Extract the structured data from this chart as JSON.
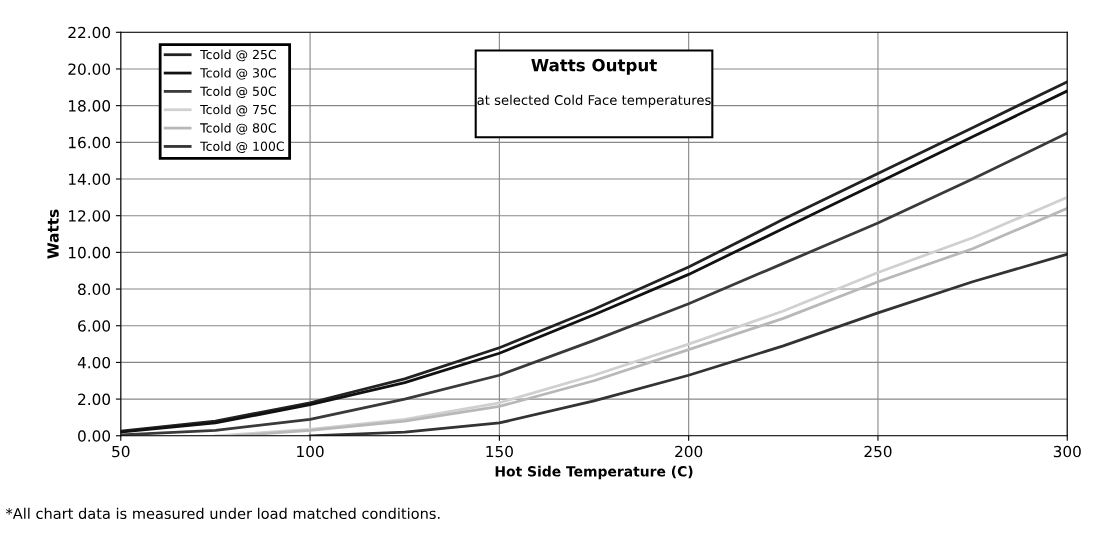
{
  "chart_data": {
    "type": "line",
    "title": "Watts Output",
    "subtitle": "at selected Cold Face temperatures",
    "xlabel": "Hot Side Temperature (C)",
    "ylabel": "Watts",
    "annotations": [
      "*All chart data is measured under load matched conditions."
    ],
    "series": [
      {
        "name": "Tcold @ 25C",
        "color": "#222222",
        "x": [
          50,
          75,
          100,
          125,
          150,
          175,
          200,
          225,
          250,
          275,
          300
        ],
        "values": [
          0.25,
          0.8,
          1.8,
          3.1,
          4.8,
          6.9,
          9.2,
          11.8,
          14.3,
          16.8,
          19.3
        ]
      },
      {
        "name": "Tcold @ 30C",
        "color": "#111111",
        "x": [
          50,
          75,
          100,
          125,
          150,
          175,
          200,
          225,
          250,
          275,
          300
        ],
        "values": [
          0.2,
          0.7,
          1.7,
          2.9,
          4.5,
          6.6,
          8.8,
          11.3,
          13.8,
          16.3,
          18.8
        ]
      },
      {
        "name": "Tcold @ 50C",
        "color": "#3a3a3a",
        "x": [
          50,
          75,
          100,
          125,
          150,
          175,
          200,
          225,
          250,
          275,
          300
        ],
        "values": [
          0.05,
          0.3,
          0.9,
          2.0,
          3.3,
          5.2,
          7.2,
          9.4,
          11.6,
          14.0,
          16.5
        ]
      },
      {
        "name": "Tcold @ 75C",
        "color": "#d0d0d0",
        "x": [
          75,
          100,
          125,
          150,
          175,
          200,
          225,
          250,
          275,
          300
        ],
        "values": [
          0.0,
          0.35,
          0.9,
          1.8,
          3.3,
          5.0,
          6.8,
          8.9,
          10.8,
          13.0
        ]
      },
      {
        "name": "Tcold @ 80C",
        "color": "#b8b8b8",
        "x": [
          80,
          100,
          125,
          150,
          175,
          200,
          225,
          250,
          275,
          300
        ],
        "values": [
          0.0,
          0.3,
          0.8,
          1.6,
          3.0,
          4.7,
          6.4,
          8.4,
          10.2,
          12.4
        ]
      },
      {
        "name": "Tcold @ 100C",
        "color": "#333333",
        "x": [
          100,
          125,
          150,
          175,
          200,
          225,
          250,
          275,
          300
        ],
        "values": [
          0.0,
          0.2,
          0.7,
          1.9,
          3.3,
          4.9,
          6.7,
          8.4,
          9.9
        ]
      }
    ],
    "xlim": [
      50,
      300
    ],
    "xticks": [
      50,
      100,
      150,
      200,
      250,
      300
    ],
    "ylim": [
      0,
      22
    ],
    "yticks": [
      {
        "value": 0,
        "label": "0.00"
      },
      {
        "value": 2,
        "label": "2.00"
      },
      {
        "value": 4,
        "label": "4.00"
      },
      {
        "value": 6,
        "label": "6.00"
      },
      {
        "value": 8,
        "label": "8.00"
      },
      {
        "value": 10,
        "label": "10.00"
      },
      {
        "value": 12,
        "label": "12.00"
      },
      {
        "value": 14,
        "label": "14.00"
      },
      {
        "value": 16,
        "label": "16.00"
      },
      {
        "value": 18,
        "label": "18.00"
      },
      {
        "value": 20,
        "label": "20.00"
      },
      {
        "value": 22,
        "label": "22.00"
      }
    ],
    "grid": true,
    "legend": "top left",
    "marker": "none",
    "line_style": "solid"
  }
}
